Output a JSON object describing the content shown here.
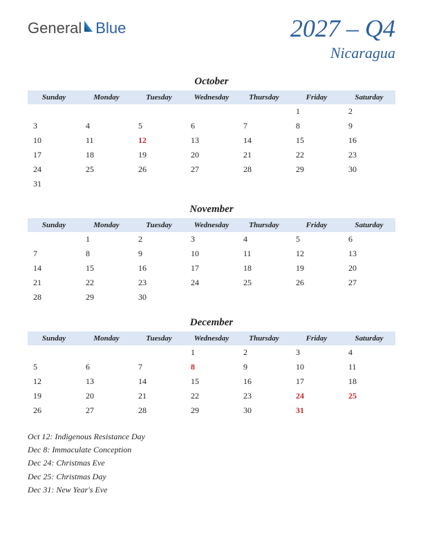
{
  "logo": {
    "text1": "General",
    "text2": "Blue"
  },
  "title": {
    "quarter": "2027 – Q4",
    "country": "Nicaragua"
  },
  "colors": {
    "header_bg": "#dce6f4",
    "title_color": "#2b5f9e",
    "holiday_color": "#c62828",
    "text_color": "#222222",
    "background": "#ffffff"
  },
  "day_headers": [
    "Sunday",
    "Monday",
    "Tuesday",
    "Wednesday",
    "Thursday",
    "Friday",
    "Saturday"
  ],
  "months": [
    {
      "name": "October",
      "weeks": [
        [
          "",
          "",
          "",
          "",
          "",
          "1",
          "2"
        ],
        [
          "3",
          "4",
          "5",
          "6",
          "7",
          "8",
          "9"
        ],
        [
          "10",
          "11",
          "12",
          "13",
          "14",
          "15",
          "16"
        ],
        [
          "17",
          "18",
          "19",
          "20",
          "21",
          "22",
          "23"
        ],
        [
          "24",
          "25",
          "26",
          "27",
          "28",
          "29",
          "30"
        ],
        [
          "31",
          "",
          "",
          "",
          "",
          "",
          ""
        ]
      ],
      "holidays_cells": [
        [
          2,
          2
        ]
      ]
    },
    {
      "name": "November",
      "weeks": [
        [
          "",
          "1",
          "2",
          "3",
          "4",
          "5",
          "6"
        ],
        [
          "7",
          "8",
          "9",
          "10",
          "11",
          "12",
          "13"
        ],
        [
          "14",
          "15",
          "16",
          "17",
          "18",
          "19",
          "20"
        ],
        [
          "21",
          "22",
          "23",
          "24",
          "25",
          "26",
          "27"
        ],
        [
          "28",
          "29",
          "30",
          "",
          "",
          "",
          ""
        ]
      ],
      "holidays_cells": []
    },
    {
      "name": "December",
      "weeks": [
        [
          "",
          "",
          "",
          "1",
          "2",
          "3",
          "4"
        ],
        [
          "5",
          "6",
          "7",
          "8",
          "9",
          "10",
          "11"
        ],
        [
          "12",
          "13",
          "14",
          "15",
          "16",
          "17",
          "18"
        ],
        [
          "19",
          "20",
          "21",
          "22",
          "23",
          "24",
          "25"
        ],
        [
          "26",
          "27",
          "28",
          "29",
          "30",
          "31",
          ""
        ]
      ],
      "holidays_cells": [
        [
          1,
          3
        ],
        [
          3,
          5
        ],
        [
          3,
          6
        ],
        [
          4,
          5
        ]
      ]
    }
  ],
  "holiday_list": [
    "Oct 12: Indigenous Resistance Day",
    "Dec 8: Immaculate Conception",
    "Dec 24: Christmas Eve",
    "Dec 25: Christmas Day",
    "Dec 31: New Year's Eve"
  ]
}
